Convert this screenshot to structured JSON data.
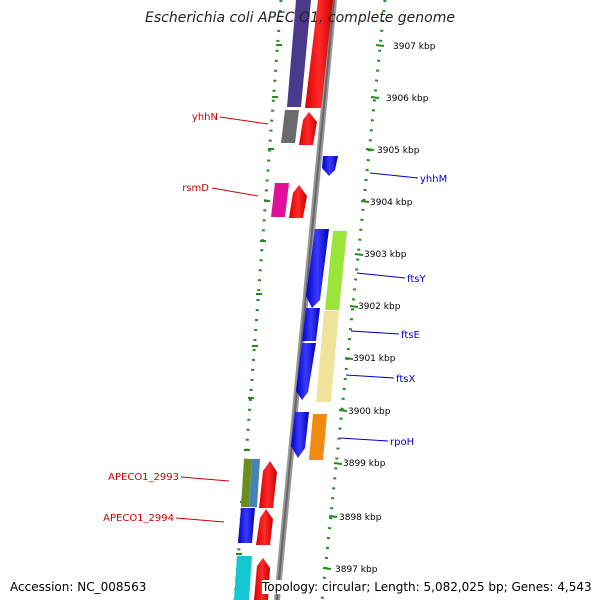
{
  "title": "Escherichia coli APEC O1, complete genome",
  "footer": {
    "accession": "Accession: NC_008563",
    "summary": "Topology: circular; Length: 5,082,025 bp; Genes: 4,543"
  },
  "colors": {
    "label_left": "#cc0000",
    "label_right": "#0000cc",
    "dots": "#228b22",
    "backbone": "#888888"
  },
  "kbp_labels": [
    "3907 kbp",
    "3906 kbp",
    "3905 kbp",
    "3904 kbp",
    "3903 kbp",
    "3902 kbp",
    "3901 kbp",
    "3900 kbp",
    "3899 kbp",
    "3898 kbp",
    "3897 kbp"
  ],
  "left_labels": [
    "yhhN",
    "rsmD",
    "APECO1_2993",
    "APECO1_2994"
  ],
  "right_labels": [
    "yhhM",
    "ftsY",
    "ftsE",
    "ftsX",
    "rpoH"
  ]
}
